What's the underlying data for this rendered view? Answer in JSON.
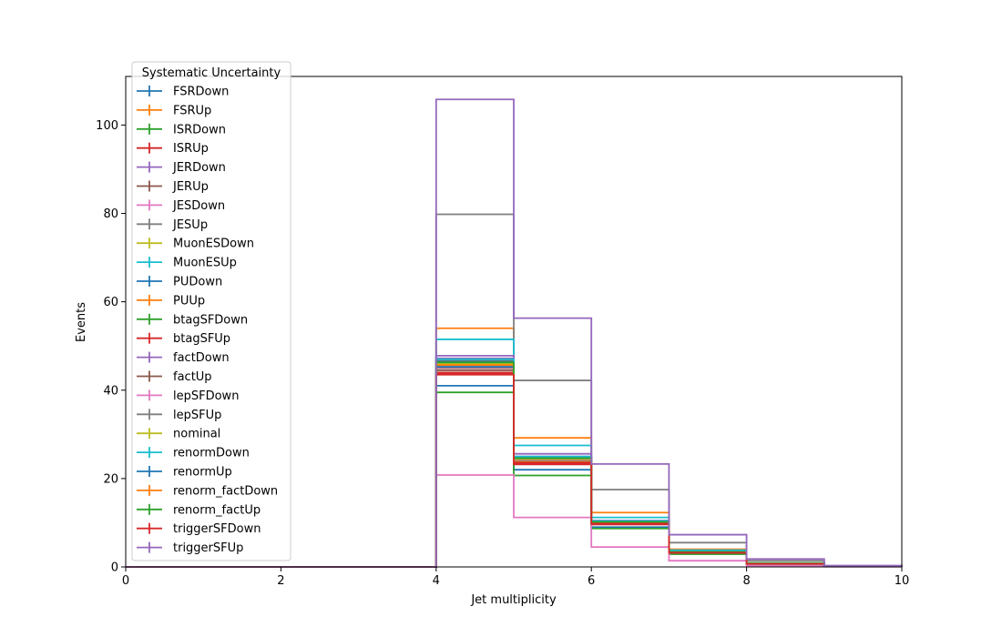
{
  "chart_data": {
    "type": "line",
    "xlabel": "Jet multiplicity",
    "ylabel": "Events",
    "xlim": [
      0,
      10
    ],
    "ylim": [
      0,
      111
    ],
    "x_ticks": [
      "0",
      "2",
      "4",
      "6",
      "8",
      "10"
    ],
    "y_ticks": [
      "0",
      "20",
      "40",
      "60",
      "80",
      "100"
    ],
    "bin_edges": [
      0,
      1,
      2,
      3,
      4,
      5,
      6,
      7,
      8,
      9,
      10
    ],
    "legend_title": "Systematic Uncertainty",
    "legend_position": "top-left",
    "grid": false,
    "series": [
      {
        "name": "FSRDown",
        "color": "#1f77b4",
        "values": [
          0,
          0,
          0,
          0,
          41.0,
          22.0,
          9.0,
          3.0,
          0.6,
          0.1
        ]
      },
      {
        "name": "FSRUp",
        "color": "#ff7f0e",
        "values": [
          0,
          0,
          0,
          0,
          54.0,
          29.2,
          12.3,
          4.0,
          0.9,
          0.1
        ]
      },
      {
        "name": "ISRDown",
        "color": "#2ca02c",
        "values": [
          0,
          0,
          0,
          0,
          39.5,
          20.7,
          8.7,
          2.9,
          0.6,
          0.1
        ]
      },
      {
        "name": "ISRUp",
        "color": "#d62728",
        "values": [
          0,
          0,
          0,
          0,
          44.0,
          23.2,
          9.6,
          3.2,
          0.7,
          0.1
        ]
      },
      {
        "name": "JERDown",
        "color": "#9467bd",
        "values": [
          0,
          0,
          0,
          0,
          47.2,
          25.0,
          10.4,
          3.5,
          0.8,
          0.1
        ]
      },
      {
        "name": "JERUp",
        "color": "#8c564b",
        "values": [
          0,
          0,
          0,
          0,
          45.0,
          24.0,
          10.0,
          3.3,
          0.7,
          0.1
        ]
      },
      {
        "name": "JESDown",
        "color": "#e377c2",
        "values": [
          0,
          0,
          0,
          0,
          20.8,
          11.2,
          4.5,
          1.4,
          0.3,
          0.05
        ]
      },
      {
        "name": "JESUp",
        "color": "#7f7f7f",
        "values": [
          0,
          0,
          0,
          0,
          79.8,
          42.2,
          17.5,
          5.5,
          1.4,
          0.2
        ]
      },
      {
        "name": "MuonESDown",
        "color": "#bcbd22",
        "values": [
          0,
          0,
          0,
          0,
          45.5,
          24.3,
          10.1,
          3.4,
          0.8,
          0.1
        ]
      },
      {
        "name": "MuonESUp",
        "color": "#17becf",
        "values": [
          0,
          0,
          0,
          0,
          51.5,
          27.5,
          11.2,
          3.8,
          0.9,
          0.1
        ]
      },
      {
        "name": "PUDown",
        "color": "#1f77b4",
        "values": [
          0,
          0,
          0,
          0,
          46.5,
          24.6,
          10.2,
          3.4,
          0.8,
          0.1
        ]
      },
      {
        "name": "PUUp",
        "color": "#ff7f0e",
        "values": [
          0,
          0,
          0,
          0,
          45.8,
          24.2,
          10.0,
          3.3,
          0.7,
          0.1
        ]
      },
      {
        "name": "btagSFDown",
        "color": "#2ca02c",
        "values": [
          0,
          0,
          0,
          0,
          46.2,
          24.5,
          10.1,
          3.4,
          0.8,
          0.1
        ]
      },
      {
        "name": "btagSFUp",
        "color": "#d62728",
        "values": [
          0,
          0,
          0,
          0,
          43.8,
          23.5,
          9.7,
          3.2,
          0.7,
          0.1
        ]
      },
      {
        "name": "factDown",
        "color": "#9467bd",
        "values": [
          0,
          0,
          0,
          0,
          47.8,
          25.6,
          10.5,
          3.5,
          0.8,
          0.1
        ]
      },
      {
        "name": "factUp",
        "color": "#8c564b",
        "values": [
          0,
          0,
          0,
          0,
          44.5,
          23.7,
          9.8,
          3.3,
          0.7,
          0.1
        ]
      },
      {
        "name": "lepSFDown",
        "color": "#e377c2",
        "values": [
          0,
          0,
          0,
          0,
          45.2,
          24.0,
          9.9,
          3.3,
          0.7,
          0.1
        ]
      },
      {
        "name": "lepSFUp",
        "color": "#7f7f7f",
        "values": [
          0,
          0,
          0,
          0,
          46.8,
          24.8,
          10.3,
          3.4,
          0.8,
          0.1
        ]
      },
      {
        "name": "nominal",
        "color": "#bcbd22",
        "values": [
          0,
          0,
          0,
          0,
          46.0,
          24.4,
          10.1,
          3.4,
          0.8,
          0.1
        ]
      },
      {
        "name": "renormDown",
        "color": "#17becf",
        "values": [
          0,
          0,
          0,
          0,
          47.0,
          25.0,
          10.4,
          3.5,
          0.8,
          0.1
        ]
      },
      {
        "name": "renormUp",
        "color": "#1f77b4",
        "values": [
          0,
          0,
          0,
          0,
          45.3,
          23.9,
          9.9,
          3.3,
          0.7,
          0.1
        ]
      },
      {
        "name": "renorm_factDown",
        "color": "#ff7f0e",
        "values": [
          0,
          0,
          0,
          0,
          45.7,
          23.8,
          10.0,
          3.4,
          0.8,
          0.1
        ]
      },
      {
        "name": "renorm_factUp",
        "color": "#2ca02c",
        "values": [
          0,
          0,
          0,
          0,
          46.3,
          24.6,
          10.2,
          3.4,
          0.8,
          0.1
        ]
      },
      {
        "name": "triggerSFDown",
        "color": "#d62728",
        "values": [
          0,
          0,
          0,
          0,
          43.5,
          23.6,
          9.8,
          3.2,
          0.7,
          0.1
        ]
      },
      {
        "name": "triggerSFUp",
        "color": "#9467bd",
        "values": [
          0,
          0,
          0,
          0,
          105.8,
          56.3,
          23.3,
          7.3,
          1.8,
          0.3
        ]
      }
    ]
  }
}
